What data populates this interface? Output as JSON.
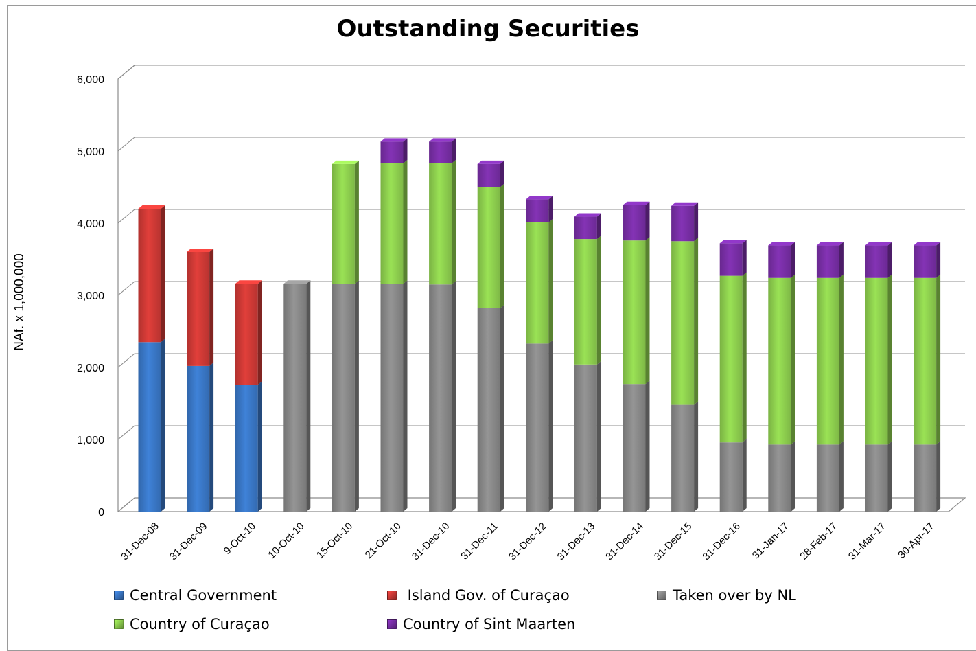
{
  "chart_data": {
    "type": "bar",
    "stacked": true,
    "three_d": true,
    "title": "Outstanding  Securities",
    "ylabel": "NAf. x 1,000,000",
    "xlabel": "",
    "ylim": [
      0,
      6000
    ],
    "yticks": [
      "0",
      "1,000",
      "2,000",
      "3,000",
      "4,000",
      "5,000",
      "6,000"
    ],
    "grid": true,
    "legend_position": "bottom",
    "categories": [
      "31-Dec-08",
      "31-Dec-09",
      "9-Oct-10",
      "10-Oct-10",
      "15-Oct-10",
      "21-Oct-10",
      "31-Dec-10",
      "31-Dec-11",
      "31-Dec-12",
      "31-Dec-13",
      "31-Dec-14",
      "31-Dec-15",
      "31-Dec-16",
      "31-Jan-17",
      "28-Feb-17",
      "31-Mar-17",
      "30-Apr-17"
    ],
    "series": [
      {
        "name": "Central Government",
        "color": "#3a78c8",
        "values": [
          2350,
          2020,
          1760,
          0,
          0,
          0,
          0,
          0,
          0,
          0,
          0,
          0,
          0,
          0,
          0,
          0,
          0
        ]
      },
      {
        "name": " Island Gov. of Curaçao",
        "color": "#d03a36",
        "values": [
          1850,
          1580,
          1400,
          0,
          0,
          0,
          0,
          0,
          0,
          0,
          0,
          0,
          0,
          0,
          0,
          0,
          0
        ]
      },
      {
        "name": "Taken over by NL",
        "color": "#8a8a8a",
        "values": [
          0,
          0,
          0,
          3160,
          3160,
          3160,
          3150,
          2820,
          2330,
          2040,
          1770,
          1480,
          960,
          930,
          930,
          930,
          930
        ]
      },
      {
        "name": "Country of Curaçao",
        "color": "#8fd14f",
        "values": [
          0,
          0,
          0,
          0,
          1660,
          1670,
          1680,
          1680,
          1680,
          1740,
          1990,
          2270,
          2310,
          2310,
          2310,
          2310,
          2310
        ]
      },
      {
        "name": "Country of Sint Maarten",
        "color": "#7a2fa8",
        "values": [
          0,
          0,
          0,
          0,
          0,
          300,
          300,
          320,
          320,
          310,
          490,
          490,
          450,
          450,
          450,
          450,
          450
        ]
      }
    ]
  }
}
